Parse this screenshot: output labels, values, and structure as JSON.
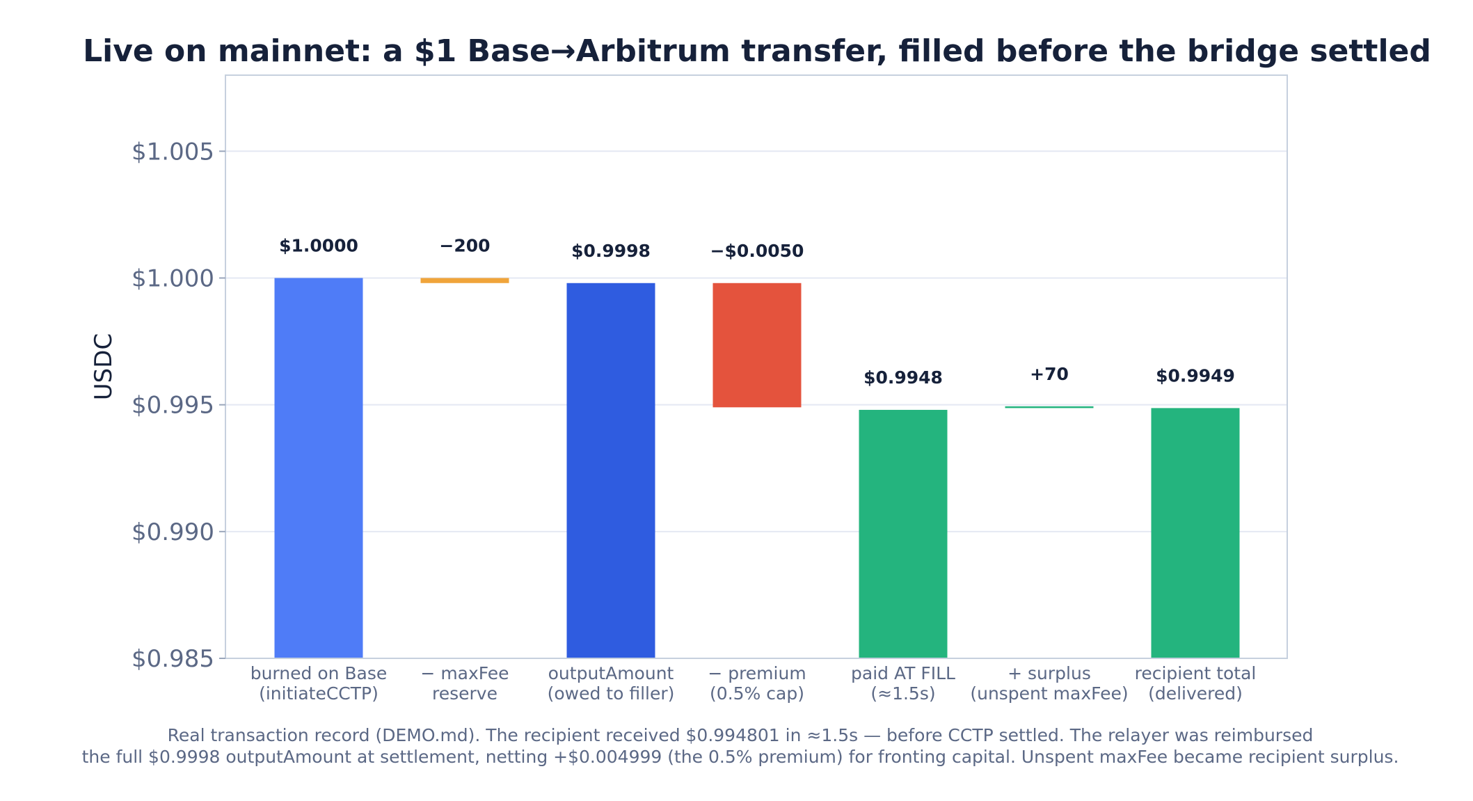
{
  "chart_data": {
    "type": "bar",
    "subtype": "waterfall",
    "title": "Live on mainnet: a $1 Base→Arbitrum transfer, filled before the bridge settled",
    "ylabel": "USDC",
    "xlabel": "",
    "ylim": [
      0.985,
      1.008
    ],
    "yticks": [
      "$0.985",
      "$0.990",
      "$0.995",
      "$1.000",
      "$1.005"
    ],
    "ytick_values": [
      0.985,
      0.99,
      0.995,
      1.0,
      1.005
    ],
    "grid": true,
    "bars": [
      {
        "label_line1": "burned on Base",
        "label_line2": "(initiateCCTP)",
        "bottom": 0.985,
        "top": 1.0,
        "data_label": "$1.0000",
        "color": "#4f7cf7"
      },
      {
        "label_line1": "− maxFee",
        "label_line2": "reserve",
        "bottom": 0.9998,
        "top": 1.0,
        "data_label": "−200",
        "color": "#f0a43a"
      },
      {
        "label_line1": "outputAmount",
        "label_line2": "(owed to filler)",
        "bottom": 0.985,
        "top": 0.9998,
        "data_label": "$0.9998",
        "color": "#2f5ce0"
      },
      {
        "label_line1": "− premium",
        "label_line2": "(0.5% cap)",
        "bottom": 0.9949,
        "top": 0.9998,
        "data_label": "−$0.0050",
        "color": "#e4533d"
      },
      {
        "label_line1": "paid AT FILL",
        "label_line2": "(≈1.5s)",
        "bottom": 0.985,
        "top": 0.9948,
        "data_label": "$0.9948",
        "color": "#24b47e"
      },
      {
        "label_line1": "+ surplus",
        "label_line2": "(unspent maxFee)",
        "bottom": 0.99487,
        "top": 0.99494,
        "data_label": "+70",
        "color": "#24b47e"
      },
      {
        "label_line1": "recipient total",
        "label_line2": "(delivered)",
        "bottom": 0.985,
        "top": 0.99487,
        "data_label": "$0.9949",
        "color": "#24b47e"
      }
    ],
    "footer_line1": "Real transaction record (DEMO.md). The recipient received $0.994801 in ≈1.5s — before CCTP settled. The relayer was reimbursed",
    "footer_line2": "the full $0.9998 outputAmount at settlement, netting +$0.004999 (the 0.5% premium) for fronting capital. Unspent maxFee became recipient surplus."
  }
}
